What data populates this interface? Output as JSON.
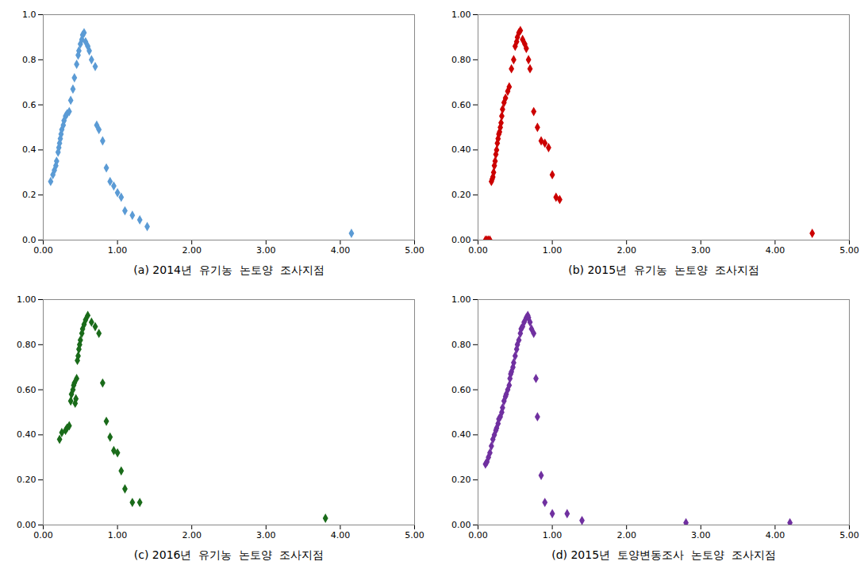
{
  "chart_data": [
    {
      "type": "scatter",
      "xlabel": "(a) 2014년  유기농  논토양  조사지점",
      "color": "#5b9bd5",
      "marker": "diamond",
      "x": [
        0.1,
        0.13,
        0.15,
        0.17,
        0.18,
        0.2,
        0.21,
        0.22,
        0.23,
        0.24,
        0.25,
        0.27,
        0.28,
        0.3,
        0.32,
        0.35,
        0.37,
        0.4,
        0.42,
        0.45,
        0.47,
        0.48,
        0.5,
        0.52,
        0.53,
        0.55,
        0.57,
        0.6,
        0.62,
        0.65,
        0.7,
        0.72,
        0.75,
        0.8,
        0.85,
        0.9,
        0.95,
        1.0,
        1.05,
        1.1,
        1.2,
        1.3,
        1.4,
        4.15
      ],
      "values": [
        0.26,
        0.29,
        0.31,
        0.33,
        0.35,
        0.39,
        0.41,
        0.43,
        0.45,
        0.47,
        0.49,
        0.51,
        0.53,
        0.55,
        0.56,
        0.57,
        0.62,
        0.67,
        0.72,
        0.78,
        0.82,
        0.84,
        0.87,
        0.89,
        0.91,
        0.92,
        0.88,
        0.86,
        0.84,
        0.8,
        0.77,
        0.51,
        0.49,
        0.44,
        0.32,
        0.26,
        0.24,
        0.21,
        0.19,
        0.13,
        0.11,
        0.09,
        0.06,
        0.03
      ],
      "xlim": [
        0.0,
        5.0
      ],
      "ylim": [
        0.0,
        1.0
      ],
      "xticks": [
        {
          "value": 0,
          "label": "0.00"
        },
        {
          "value": 1,
          "label": "1.00"
        },
        {
          "value": 2,
          "label": "2.00"
        },
        {
          "value": 3,
          "label": "3.00"
        },
        {
          "value": 4,
          "label": "4.00"
        },
        {
          "value": 5,
          "label": "5.00"
        }
      ],
      "yticks": [
        {
          "value": 0,
          "label": "0.0"
        },
        0.2,
        0.4,
        0.6,
        0.8,
        {
          "value": 1,
          "label": "1.0"
        }
      ],
      "grid": false
    },
    {
      "type": "scatter",
      "xlabel": "(b) 2015년  유기농  논토양  조사지점",
      "color": "#cc0000",
      "marker": "diamond",
      "x": [
        0.1,
        0.12,
        0.14,
        0.16,
        0.18,
        0.19,
        0.2,
        0.21,
        0.22,
        0.23,
        0.24,
        0.25,
        0.26,
        0.27,
        0.28,
        0.29,
        0.3,
        0.31,
        0.32,
        0.33,
        0.35,
        0.37,
        0.4,
        0.42,
        0.45,
        0.48,
        0.5,
        0.52,
        0.53,
        0.55,
        0.57,
        0.6,
        0.63,
        0.65,
        0.68,
        0.7,
        0.75,
        0.8,
        0.85,
        0.9,
        0.95,
        1.0,
        1.05,
        1.1,
        4.5
      ],
      "values": [
        0.0,
        0.0,
        0.0,
        0.0,
        0.26,
        0.27,
        0.28,
        0.3,
        0.33,
        0.35,
        0.38,
        0.4,
        0.43,
        0.45,
        0.47,
        0.48,
        0.5,
        0.52,
        0.55,
        0.58,
        0.61,
        0.63,
        0.66,
        0.68,
        0.76,
        0.8,
        0.86,
        0.88,
        0.9,
        0.92,
        0.93,
        0.89,
        0.87,
        0.85,
        0.8,
        0.76,
        0.57,
        0.5,
        0.44,
        0.43,
        0.41,
        0.29,
        0.19,
        0.18,
        0.03
      ],
      "xlim": [
        0.0,
        5.0
      ],
      "ylim": [
        0.0,
        1.0
      ],
      "xticks": [
        {
          "value": 0,
          "label": "0.00"
        },
        {
          "value": 1,
          "label": "1.00"
        },
        {
          "value": 2,
          "label": "2.00"
        },
        {
          "value": 3,
          "label": "3.00"
        },
        {
          "value": 4,
          "label": "4.00"
        },
        {
          "value": 5,
          "label": "5.00"
        }
      ],
      "yticks": [
        {
          "value": 0,
          "label": "0.00"
        },
        {
          "value": 0.2,
          "label": "0.20"
        },
        {
          "value": 0.4,
          "label": "0.40"
        },
        {
          "value": 0.6,
          "label": "0.60"
        },
        {
          "value": 0.8,
          "label": "0.80"
        },
        {
          "value": 1,
          "label": "1.00"
        }
      ],
      "grid": false
    },
    {
      "type": "scatter",
      "xlabel": "(c) 2016년  유기농  논토양  조사지점",
      "color": "#1a6b1a",
      "marker": "diamond",
      "x": [
        0.22,
        0.25,
        0.3,
        0.32,
        0.35,
        0.37,
        0.38,
        0.4,
        0.41,
        0.42,
        0.43,
        0.44,
        0.45,
        0.46,
        0.47,
        0.48,
        0.49,
        0.5,
        0.52,
        0.53,
        0.55,
        0.57,
        0.6,
        0.65,
        0.7,
        0.75,
        0.8,
        0.85,
        0.9,
        0.95,
        1.0,
        1.05,
        1.1,
        1.2,
        1.3,
        3.8
      ],
      "values": [
        0.38,
        0.41,
        0.42,
        0.43,
        0.44,
        0.55,
        0.58,
        0.6,
        0.62,
        0.63,
        0.54,
        0.56,
        0.65,
        0.73,
        0.75,
        0.78,
        0.8,
        0.82,
        0.85,
        0.87,
        0.89,
        0.91,
        0.93,
        0.9,
        0.88,
        0.85,
        0.63,
        0.46,
        0.39,
        0.33,
        0.32,
        0.24,
        0.16,
        0.1,
        0.1,
        0.03
      ],
      "xlim": [
        0.0,
        5.0
      ],
      "ylim": [
        0.0,
        1.0
      ],
      "xticks": [
        {
          "value": 0,
          "label": "0.00"
        },
        {
          "value": 1,
          "label": "1.00"
        },
        {
          "value": 2,
          "label": "2.00"
        },
        {
          "value": 3,
          "label": "3.00"
        },
        {
          "value": 4,
          "label": "4.00"
        },
        {
          "value": 5,
          "label": "5.00"
        }
      ],
      "yticks": [
        {
          "value": 0,
          "label": "0.00"
        },
        {
          "value": 0.2,
          "label": "0.20"
        },
        {
          "value": 0.4,
          "label": "0.40"
        },
        {
          "value": 0.6,
          "label": "0.60"
        },
        {
          "value": 0.8,
          "label": "0.80"
        },
        {
          "value": 1,
          "label": "1.00"
        }
      ],
      "grid": false
    },
    {
      "type": "scatter",
      "xlabel": "(d) 2015년  토양변동조사  논토양  조사지점",
      "color": "#7030a0",
      "marker": "diamond",
      "x": [
        0.1,
        0.12,
        0.14,
        0.16,
        0.18,
        0.2,
        0.22,
        0.24,
        0.25,
        0.27,
        0.28,
        0.3,
        0.32,
        0.33,
        0.35,
        0.37,
        0.38,
        0.4,
        0.42,
        0.43,
        0.44,
        0.45,
        0.47,
        0.48,
        0.5,
        0.52,
        0.53,
        0.55,
        0.57,
        0.58,
        0.6,
        0.62,
        0.65,
        0.67,
        0.68,
        0.7,
        0.72,
        0.75,
        0.78,
        0.8,
        0.85,
        0.9,
        1.0,
        1.2,
        1.4,
        2.8,
        4.2
      ],
      "values": [
        0.27,
        0.28,
        0.3,
        0.32,
        0.35,
        0.38,
        0.4,
        0.42,
        0.43,
        0.45,
        0.47,
        0.48,
        0.5,
        0.52,
        0.55,
        0.57,
        0.58,
        0.6,
        0.62,
        0.65,
        0.67,
        0.68,
        0.7,
        0.72,
        0.75,
        0.78,
        0.8,
        0.82,
        0.85,
        0.87,
        0.88,
        0.9,
        0.92,
        0.93,
        0.92,
        0.9,
        0.87,
        0.85,
        0.65,
        0.48,
        0.22,
        0.1,
        0.05,
        0.05,
        0.02,
        0.01,
        0.01
      ],
      "xlim": [
        0.0,
        5.0
      ],
      "ylim": [
        0.0,
        1.0
      ],
      "xticks": [
        {
          "value": 0,
          "label": "0.00"
        },
        {
          "value": 1,
          "label": "1.00"
        },
        {
          "value": 2,
          "label": "2.00"
        },
        {
          "value": 3,
          "label": "3.00"
        },
        {
          "value": 4,
          "label": "4.00"
        },
        {
          "value": 5,
          "label": "5.00"
        }
      ],
      "yticks": [
        {
          "value": 0,
          "label": "0.00"
        },
        {
          "value": 0.2,
          "label": "0.20"
        },
        {
          "value": 0.4,
          "label": "0.40"
        },
        {
          "value": 0.6,
          "label": "0.60"
        },
        {
          "value": 0.8,
          "label": "0.80"
        },
        {
          "value": 1,
          "label": "1.00"
        }
      ],
      "grid": false
    }
  ]
}
